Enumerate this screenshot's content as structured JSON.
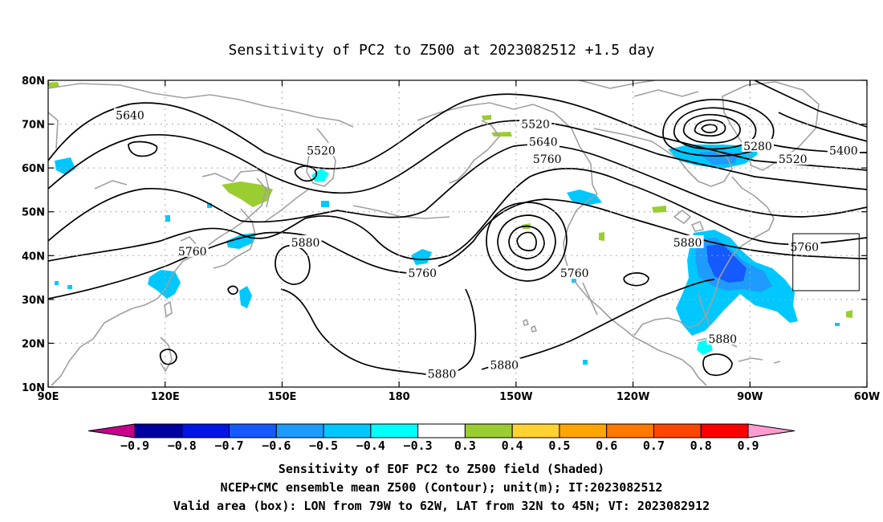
{
  "title": "Sensitivity of PC2 to Z500 at 2023082512 +1.5 day",
  "map": {
    "lon_range": [
      90,
      300
    ],
    "lat_range": [
      10,
      80
    ],
    "x_ticks": [
      {
        "lon": 90,
        "label": "90E"
      },
      {
        "lon": 120,
        "label": "120E"
      },
      {
        "lon": 150,
        "label": "150E"
      },
      {
        "lon": 180,
        "label": "180"
      },
      {
        "lon": 210,
        "label": "150W"
      },
      {
        "lon": 240,
        "label": "120W"
      },
      {
        "lon": 270,
        "label": "90W"
      },
      {
        "lon": 300,
        "label": "60W"
      }
    ],
    "y_ticks": [
      {
        "lat": 80,
        "label": "80N"
      },
      {
        "lat": 70,
        "label": "70N"
      },
      {
        "lat": 60,
        "label": "60N"
      },
      {
        "lat": 50,
        "label": "50N"
      },
      {
        "lat": 40,
        "label": "40N"
      },
      {
        "lat": 30,
        "label": "30N"
      },
      {
        "lat": 20,
        "label": "20N"
      },
      {
        "lat": 10,
        "label": "10N"
      }
    ],
    "grid": "dotted",
    "valid_box": {
      "lon_w": -79,
      "lon_e": -62,
      "lat_s": 32,
      "lat_n": 45
    },
    "contour_labels": [
      {
        "text": "5640",
        "lon": 111,
        "lat": 72
      },
      {
        "text": "5520",
        "lon": 160,
        "lat": 64
      },
      {
        "text": "5760",
        "lon": 127,
        "lat": 41
      },
      {
        "text": "5880",
        "lon": 156,
        "lat": 43
      },
      {
        "text": "5760",
        "lon": 186,
        "lat": 36
      },
      {
        "text": "5520",
        "lon": 215,
        "lat": 70
      },
      {
        "text": "5640",
        "lon": 217,
        "lat": 66
      },
      {
        "text": "5760",
        "lon": 218,
        "lat": 62
      },
      {
        "text": "5760",
        "lon": 225,
        "lat": 36
      },
      {
        "text": "5880",
        "lon": 254,
        "lat": 43
      },
      {
        "text": "5280",
        "lon": 272,
        "lat": 65
      },
      {
        "text": "5520",
        "lon": 281,
        "lat": 62
      },
      {
        "text": "5400",
        "lon": 294,
        "lat": 64
      },
      {
        "text": "5760",
        "lon": 284,
        "lat": 42
      },
      {
        "text": "5880",
        "lon": 263,
        "lat": 21
      },
      {
        "text": "5880",
        "lon": 191,
        "lat": 13
      },
      {
        "text": "5880",
        "lon": 207,
        "lat": 15
      }
    ]
  },
  "colorbar": {
    "bins": [
      {
        "color": "#c8008c"
      },
      {
        "color": "#0000a0"
      },
      {
        "color": "#0014e6"
      },
      {
        "color": "#145aff"
      },
      {
        "color": "#1e9bff"
      },
      {
        "color": "#00c8ff"
      },
      {
        "color": "#00ffff"
      },
      {
        "color": "#ffffff"
      },
      {
        "color": "#9acd32"
      },
      {
        "color": "#ffd232"
      },
      {
        "color": "#ffa500"
      },
      {
        "color": "#ff7800"
      },
      {
        "color": "#ff4600"
      },
      {
        "color": "#ff0000"
      },
      {
        "color": "#ff9bd2"
      }
    ],
    "labels": [
      "−0.9",
      "−0.8",
      "−0.7",
      "−0.6",
      "−0.5",
      "−0.4",
      "−0.3",
      "0.3",
      "0.4",
      "0.5",
      "0.6",
      "0.7",
      "0.8",
      "0.9"
    ]
  },
  "footer": {
    "line1": "Sensitivity of EOF PC2 to Z500 field (Shaded)",
    "line2": "NCEP+CMC ensemble mean Z500 (Contour); unit(m); IT:2023082512",
    "line3": "Valid area (box): LON from 79W to 62W, LAT from 32N to 45N; VT: 2023082912"
  },
  "colors": {
    "coastline": "#a0a0a0",
    "contour": "#000000",
    "shade_light_cyan": "#00ffff",
    "shade_cyan": "#00c8ff",
    "shade_blue": "#1e9bff",
    "shade_dark": "#145aff",
    "shade_green": "#9acd32"
  }
}
